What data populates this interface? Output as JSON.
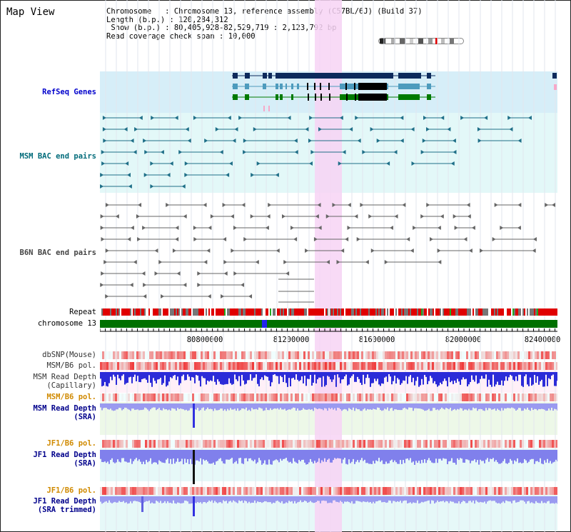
{
  "title": "Map View",
  "info": {
    "chromosome_label": "Chromosome",
    "chromosome_value": "Chromosome 13, reference assembly (C57BL/6J) (Build 37)",
    "length_label": "Length (b.p.)",
    "length_value": "120,284,312",
    "show_label": "Show (b.p.)",
    "show_value": "80,405,928-82,529,719 : 2,123,792 bp",
    "coverage_label": "Read coverage check span",
    "coverage_value": "10,000"
  },
  "tracks": {
    "refseq": "RefSeq Genes",
    "msm_bac": "MSM BAC end pairs",
    "b6n_bac": "B6N BAC end pairs",
    "repeat": "Repeat",
    "chromosome": "chromosome 13",
    "dbsnp": "dbSNP(Mouse)",
    "msm_pol_1": "MSM/B6 pol.",
    "msm_depth_cap_1": "MSM Read Depth",
    "msm_depth_cap_2": "(Capillary)",
    "msm_pol_2": "MSM/B6 pol.",
    "msm_depth_sra_1": "MSM Read Depth",
    "msm_depth_sra_2": "(SRA)",
    "jf1_pol_1": "JF1/B6 pol.",
    "jf1_depth_1": "JF1 Read Depth",
    "jf1_depth_2": "(SRA)",
    "jf1_pol_2": "JF1/B6 pol.",
    "jf1_trim_1": "JF1 Read Depth",
    "jf1_trim_2": "(SRA trimmed)"
  },
  "axis": {
    "ticks": [
      "80800000",
      "81200000",
      "81600000",
      "82000000",
      "82400000"
    ]
  },
  "colors": {
    "highlight": "#f7d4f4",
    "refseq_bg": "#d6eef8",
    "bac_bg": "#e3f8f8",
    "navy_gene": "#0d2a5c",
    "teal_gene": "#4d9bbd",
    "green_gene": "#007a00",
    "chromosome_bar": "#007000",
    "depth_blue": "#3b3bdc"
  }
}
